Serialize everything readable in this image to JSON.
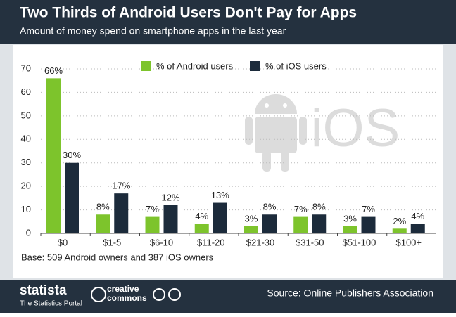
{
  "chart_data": {
    "type": "bar",
    "title": "Two Thirds of Android Users Don't Pay for Apps",
    "subtitle": "Amount of money spend on smartphone apps in the last year",
    "categories": [
      "$0",
      "$1-5",
      "$6-10",
      "$11-20",
      "$21-30",
      "$31-50",
      "$51-100",
      "$100+"
    ],
    "series": [
      {
        "name": "% of Android users",
        "color": "#7dc42c",
        "values": [
          66,
          8,
          7,
          4,
          3,
          7,
          3,
          2
        ],
        "value_labels": [
          "66%",
          "8%",
          "7%",
          "4%",
          "3%",
          "7%",
          "3%",
          "2%"
        ]
      },
      {
        "name": "% of iOS users",
        "color": "#1c2b3b",
        "values": [
          30,
          17,
          12,
          13,
          8,
          8,
          7,
          4
        ],
        "value_labels": [
          "30%",
          "17%",
          "12%",
          "13%",
          "8%",
          "8%",
          "7%",
          "4%"
        ]
      }
    ],
    "ylim": [
      0,
      70
    ],
    "yticks": [
      0,
      10,
      20,
      30,
      40,
      50,
      60,
      70
    ],
    "grid": true,
    "legend": "top",
    "note": "Base: 509 Android owners and 387 iOS owners",
    "watermark": "iOS"
  },
  "footer": {
    "brand": "statista",
    "tagline": "The Statistics Portal",
    "license_top": "creative",
    "license_bottom": "commons",
    "source": "Source: Online Publishers Association"
  }
}
